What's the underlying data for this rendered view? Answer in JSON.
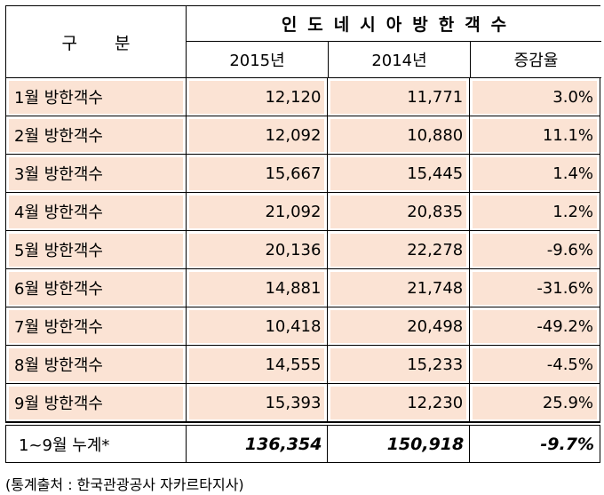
{
  "header": {
    "gubun": "구 분",
    "title": "인도네시아방한객수",
    "col_2015": "2015년",
    "col_2014": "2014년",
    "col_rate": "증감율"
  },
  "rows": [
    {
      "label": "1월 방한객수",
      "y2015": "12,120",
      "y2014": "11,771",
      "rate": "3.0%"
    },
    {
      "label": "2월 방한객수",
      "y2015": "12,092",
      "y2014": "10,880",
      "rate": "11.1%"
    },
    {
      "label": "3월 방한객수",
      "y2015": "15,667",
      "y2014": "15,445",
      "rate": "1.4%"
    },
    {
      "label": "4월 방한객수",
      "y2015": "21,092",
      "y2014": "20,835",
      "rate": "1.2%"
    },
    {
      "label": "5월 방한객수",
      "y2015": "20,136",
      "y2014": "22,278",
      "rate": "-9.6%"
    },
    {
      "label": "6월 방한객수",
      "y2015": "14,881",
      "y2014": "21,748",
      "rate": "-31.6%"
    },
    {
      "label": "7월 방한객수",
      "y2015": "10,418",
      "y2014": "20,498",
      "rate": "-49.2%"
    },
    {
      "label": "8월 방한객수",
      "y2015": "14,555",
      "y2014": "15,233",
      "rate": "-4.5%"
    },
    {
      "label": "9월 방한객수",
      "y2015": "15,393",
      "y2014": "12,230",
      "rate": "25.9%"
    }
  ],
  "total": {
    "label": "1~9월 누계*",
    "y2015": "136,354",
    "y2014": "150,918",
    "rate": "-9.7%"
  },
  "source": "(통계출처 : 한국관광공사 자카르타지사)",
  "colors": {
    "row_fill": "#fbe3d4"
  }
}
